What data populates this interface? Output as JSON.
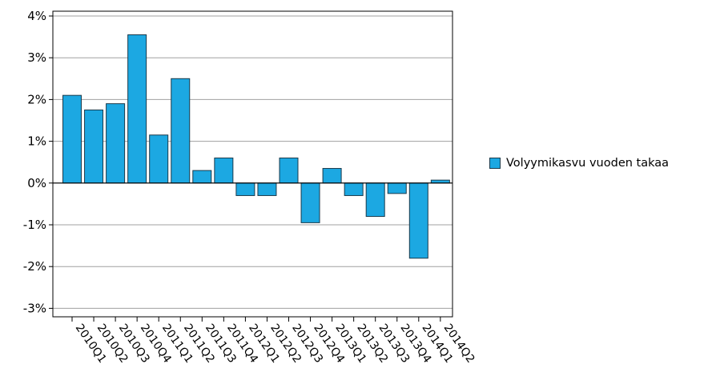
{
  "chart_data": {
    "type": "bar",
    "categories": [
      "2010Q1",
      "2010Q2",
      "2010Q3",
      "2010Q4",
      "2011Q1",
      "2011Q2",
      "2011Q3",
      "2011Q4",
      "2012Q1",
      "2012Q2",
      "2012Q3",
      "2012Q4",
      "2013Q1",
      "2013Q2",
      "2013Q3",
      "2013Q4",
      "2014Q1",
      "2014Q2"
    ],
    "series": [
      {
        "name": "Volyymikasvu vuoden takaa",
        "values": [
          2.1,
          1.75,
          1.9,
          3.55,
          1.15,
          2.5,
          0.3,
          0.6,
          -0.3,
          -0.3,
          0.6,
          -0.95,
          0.35,
          -0.3,
          -0.8,
          -0.25,
          -1.8,
          0.07
        ]
      }
    ],
    "ylim": [
      -3.2,
      4.2
    ],
    "yticks": [
      -3,
      -2,
      -1,
      0,
      1,
      2,
      3,
      4
    ],
    "ytick_labels": [
      "-3%",
      "-2%",
      "-1%",
      "0%",
      "1%",
      "2%",
      "3%",
      "4%"
    ],
    "grid": true,
    "legend_position": "right",
    "bar_color": "#1ca8e2",
    "bar_edge_color": "#1b3a4b"
  }
}
